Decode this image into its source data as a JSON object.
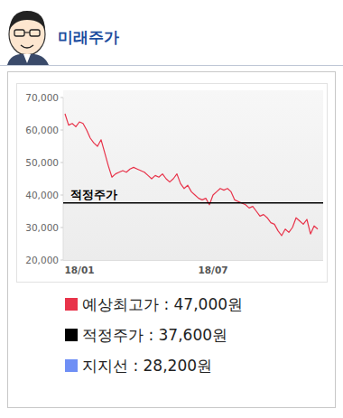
{
  "header": {
    "title": "미래주가"
  },
  "chart_data": {
    "type": "line",
    "categories": [
      null,
      null,
      null,
      null,
      "18/01",
      null,
      null,
      null,
      null,
      null,
      null,
      null,
      null,
      null,
      null,
      null,
      null,
      null,
      null,
      null,
      null,
      null,
      null,
      null,
      null,
      null,
      null,
      null,
      null,
      null,
      null,
      null,
      null,
      null,
      null,
      null,
      null,
      null,
      null,
      null,
      null,
      "18/07",
      null,
      null,
      null,
      null,
      null,
      null,
      null,
      null,
      null,
      null,
      null,
      null,
      null,
      null,
      null,
      null,
      null,
      null,
      null,
      null,
      null,
      null,
      null,
      null,
      null,
      null,
      null,
      null,
      null
    ],
    "series": [
      {
        "color": "#e8334a",
        "values": [
          65000,
          61500,
          62000,
          61000,
          62500,
          62000,
          60000,
          57500,
          56000,
          55000,
          57000,
          53000,
          49000,
          45500,
          46500,
          47000,
          47500,
          47000,
          48000,
          48500,
          48000,
          47500,
          47000,
          46000,
          45000,
          46000,
          45500,
          46500,
          45000,
          44000,
          45000,
          46500,
          43500,
          42000,
          43000,
          41000,
          40000,
          39000,
          38500,
          39000,
          37000,
          40000,
          41000,
          42000,
          41500,
          42000,
          41000,
          38500,
          38000,
          37500,
          37000,
          36000,
          36500,
          35000,
          33500,
          34000,
          33000,
          31500,
          31000,
          29000,
          27500,
          29500,
          28500,
          30000,
          33000,
          32000,
          31000,
          32500,
          28000,
          30500,
          29500
        ]
      }
    ],
    "ylim": [
      20000,
      70000
    ],
    "yticks": [
      {
        "value": 20000,
        "label": "20,000"
      },
      {
        "value": 30000,
        "label": "30,000"
      },
      {
        "value": 40000,
        "label": "40,000"
      },
      {
        "value": 50000,
        "label": "50,000"
      },
      {
        "value": 60000,
        "label": "60,000"
      },
      {
        "value": 70000,
        "label": "70,000"
      }
    ],
    "grid": false,
    "reference_line": {
      "label": "적정주가",
      "value": 37600,
      "color": "#000000"
    },
    "summary": [
      {
        "text": "예상최고가 : 47,000원",
        "color": "#e8334a"
      },
      {
        "text": "적정주가 : 37,600원",
        "color": "#000000"
      },
      {
        "text": "지지선 : 28,200원",
        "color": "#6f8ff5"
      }
    ]
  }
}
